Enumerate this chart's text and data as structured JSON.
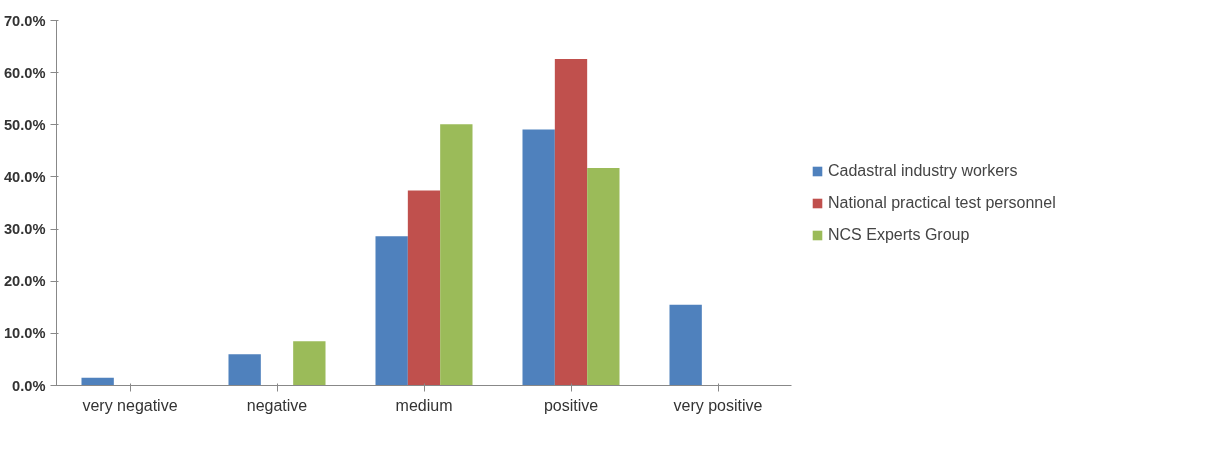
{
  "chart_data": {
    "type": "bar",
    "categories": [
      "very negative",
      "negative",
      "medium",
      "positive",
      "very positive"
    ],
    "series": [
      {
        "name": "Cadastral industry workers",
        "color": "#4f81bd",
        "values": [
          1.5,
          6.0,
          28.6,
          49.1,
          15.5
        ]
      },
      {
        "name": "National practical test personnel",
        "color": "#c0504d",
        "values": [
          null,
          null,
          37.4,
          62.6,
          null
        ]
      },
      {
        "name": "NCS Experts Group",
        "color": "#9bbb59",
        "values": [
          null,
          8.5,
          50.1,
          41.7,
          null
        ]
      }
    ],
    "ylim": [
      0,
      70
    ],
    "yticks": [
      {
        "value": 0,
        "label": "0.0%"
      },
      {
        "value": 10,
        "label": "10.0%"
      },
      {
        "value": 20,
        "label": "20.0%"
      },
      {
        "value": 30,
        "label": "30.0%"
      },
      {
        "value": 40,
        "label": "40.0%"
      },
      {
        "value": 50,
        "label": "50.0%"
      },
      {
        "value": 60,
        "label": "60.0%"
      },
      {
        "value": 70,
        "label": "70.0%"
      }
    ],
    "grid": false,
    "legend": "right"
  }
}
